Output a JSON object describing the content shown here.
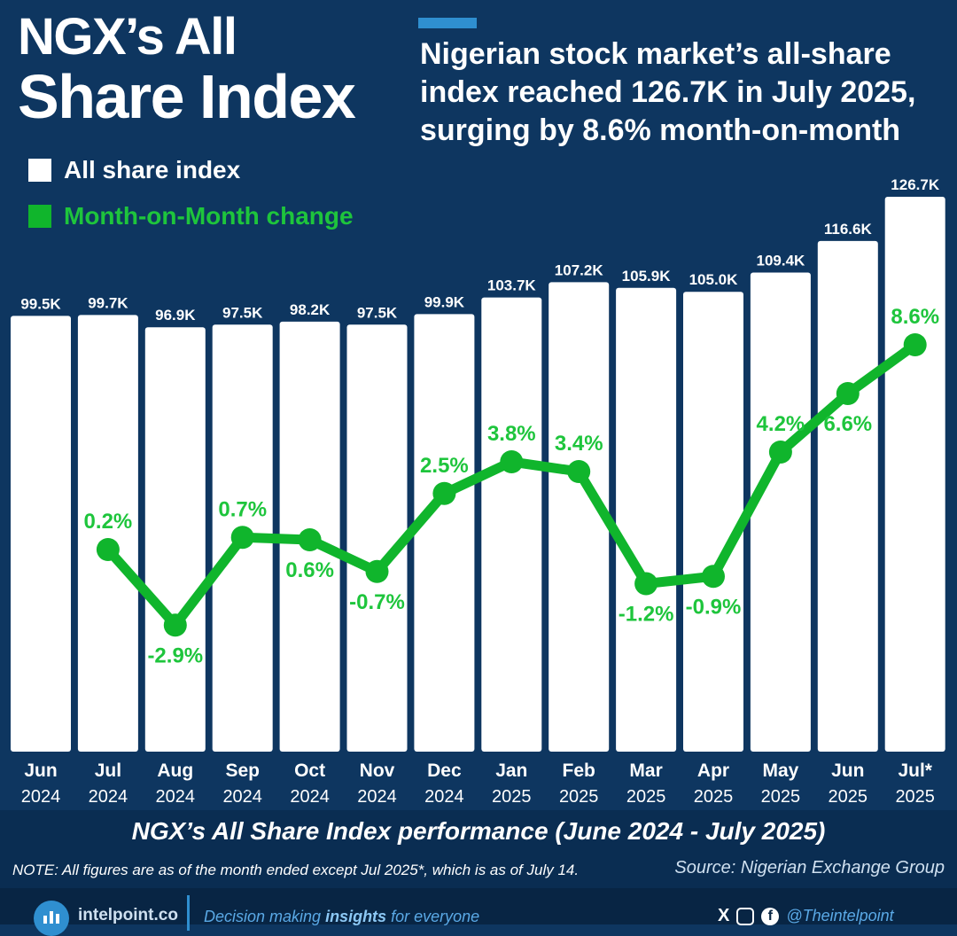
{
  "title_line1": "NGX’s All",
  "title_line2": "Share Index",
  "headline": "Nigerian stock market’s all-share index reached 126.7K in July 2025, surging by 8.6% month-on-month",
  "legend": {
    "index": "All share index",
    "mom": "Month-on-Month change"
  },
  "chart_data": {
    "type": "bar",
    "title": "NGX’s All Share Index performance (June 2024 - July 2025)",
    "categories": [
      "Jun",
      "Jul",
      "Aug",
      "Sep",
      "Oct",
      "Nov",
      "Dec",
      "Jan",
      "Feb",
      "Mar",
      "Apr",
      "May",
      "Jun",
      "Jul*"
    ],
    "years": [
      "2024",
      "2024",
      "2024",
      "2024",
      "2024",
      "2024",
      "2024",
      "2025",
      "2025",
      "2025",
      "2025",
      "2025",
      "2025",
      "2025"
    ],
    "series": [
      {
        "name": "All share index",
        "type": "bar",
        "values": [
          99.5,
          99.7,
          96.9,
          97.5,
          98.2,
          97.5,
          99.9,
          103.7,
          107.2,
          105.9,
          105.0,
          109.4,
          116.6,
          126.7
        ],
        "labels": [
          "99.5K",
          "99.7K",
          "96.9K",
          "97.5K",
          "98.2K",
          "97.5K",
          "99.9K",
          "103.7K",
          "107.2K",
          "105.9K",
          "105.0K",
          "109.4K",
          "116.6K",
          "126.7K"
        ],
        "color": "#ffffff"
      },
      {
        "name": "Month-on-Month change",
        "type": "line",
        "values": [
          null,
          0.2,
          -2.9,
          0.7,
          0.6,
          -0.7,
          2.5,
          3.8,
          3.4,
          -1.2,
          -0.9,
          4.2,
          6.6,
          8.6
        ],
        "labels": [
          "",
          "0.2%",
          "-2.9%",
          "0.7%",
          "0.6%",
          "-0.7%",
          "2.5%",
          "3.8%",
          "3.4%",
          "-1.2%",
          "-0.9%",
          "4.2%",
          "6.6%",
          "8.6%"
        ],
        "color": "#10b52c"
      }
    ],
    "label_side": [
      "",
      "above",
      "below",
      "above",
      "below",
      "below",
      "above",
      "above",
      "above",
      "below",
      "below",
      "above",
      "below",
      "above"
    ],
    "ylim_index": [
      0,
      126.7
    ],
    "ylim_mom": [
      -3,
      9
    ]
  },
  "note": "NOTE: All figures are as of the month ended except Jul 2025*, which is as of July 14.",
  "source": "Source: Nigerian Exchange Group",
  "footer": {
    "brand": "intelpoint.co",
    "tagline_pre": "Decision making ",
    "tagline_bold": "insights",
    "tagline_post": " for everyone",
    "x_icon": "X",
    "fb_icon": "f",
    "handle": "@Theintelpoint"
  }
}
